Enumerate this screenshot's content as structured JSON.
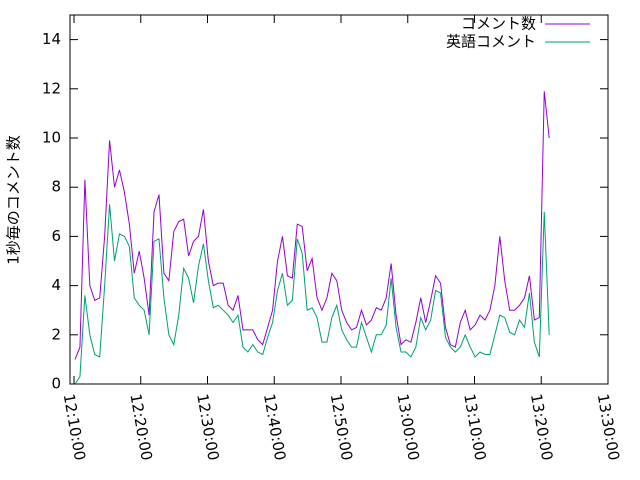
{
  "chart_data": {
    "type": "line",
    "ylabel": "1秒毎のコメント数",
    "x": [
      730.15,
      730.89,
      731.63,
      732.37,
      733.11,
      733.85,
      734.59,
      735.33,
      736.07,
      736.81,
      737.55,
      738.29,
      739.03,
      739.77,
      740.51,
      741.25,
      741.99,
      742.73,
      743.47,
      744.21,
      744.95,
      745.69,
      746.43,
      747.17,
      747.91,
      748.65,
      749.39,
      750.13,
      750.87,
      751.61,
      752.35,
      753.09,
      753.83,
      754.57,
      755.31,
      756.05,
      756.79,
      757.53,
      758.27,
      759.01,
      759.75,
      760.49,
      761.23,
      761.97,
      762.71,
      763.45,
      764.19,
      764.93,
      765.67,
      766.41,
      767.15,
      767.89,
      768.63,
      769.37,
      770.11,
      770.85,
      771.59,
      772.33,
      773.07,
      773.81,
      774.55,
      775.29,
      776.03,
      776.77,
      777.51,
      778.25,
      778.99,
      779.73,
      780.47,
      781.21,
      781.95,
      782.69,
      783.43,
      784.17,
      784.91,
      785.65,
      786.39,
      787.13,
      787.87,
      788.61,
      789.35,
      790.09,
      790.83,
      791.57,
      792.31,
      793.05,
      793.79,
      794.53,
      795.27,
      796.01,
      796.75,
      797.49,
      798.23,
      798.97,
      799.71,
      800.45,
      801.19
    ],
    "series": [
      {
        "name": "コメント数",
        "color": "#9400d3",
        "values": [
          1,
          1.5,
          8.3,
          4,
          3.4,
          3.5,
          6,
          9.9,
          8,
          8.7,
          7.8,
          6.5,
          4.5,
          5.4,
          4.3,
          2.8,
          7,
          7.7,
          4.5,
          4.2,
          6.2,
          6.6,
          6.7,
          5.2,
          5.8,
          6,
          7.1,
          5,
          4,
          4.1,
          4.1,
          3.2,
          3,
          3.6,
          2.2,
          2.2,
          2.2,
          1.8,
          1.6,
          2.3,
          3,
          5,
          6,
          4.4,
          4.3,
          6.5,
          6.4,
          4.6,
          5.1,
          3.5,
          3,
          3.5,
          4.5,
          4.2,
          3,
          2.5,
          2.2,
          2.3,
          3,
          2.4,
          2.6,
          3.1,
          3,
          3.5,
          4.9,
          2.8,
          1.6,
          1.8,
          1.7,
          2.5,
          3.5,
          2.5,
          3.4,
          4.4,
          4.1,
          2.3,
          1.6,
          1.5,
          2.5,
          3,
          2.2,
          2.4,
          2.8,
          2.6,
          3,
          4,
          6,
          4.2,
          3,
          3,
          3.2,
          3.5,
          4.4,
          2.6,
          2.7,
          11.9,
          10
        ]
      },
      {
        "name": "英語コメント",
        "color": "#009e73",
        "values": [
          0,
          0.3,
          3.6,
          2,
          1.2,
          1.1,
          4,
          7.3,
          5,
          6.1,
          6,
          5.6,
          3.5,
          3.2,
          3,
          2,
          5.8,
          5.9,
          3.5,
          2,
          1.6,
          2.8,
          4.7,
          4.3,
          3.3,
          4.8,
          5.7,
          4.2,
          3.1,
          3.2,
          3,
          2.8,
          2.5,
          2.8,
          1.5,
          1.3,
          1.6,
          1.3,
          1.2,
          1.9,
          2.5,
          3.8,
          4.5,
          3.2,
          3.4,
          5.9,
          5.3,
          3,
          3.1,
          2.7,
          1.7,
          1.7,
          2.7,
          3.2,
          2.2,
          1.8,
          1.5,
          1.5,
          2.5,
          1.9,
          1.3,
          2,
          2,
          2.4,
          4.3,
          2.3,
          1.3,
          1.3,
          1.1,
          1.5,
          2.7,
          2.2,
          2.6,
          3.8,
          3.7,
          1.9,
          1.5,
          1.3,
          1.5,
          2,
          1.5,
          1.1,
          1.3,
          1.2,
          1.2,
          2,
          2.8,
          2.7,
          2.1,
          2,
          2.6,
          2.3,
          3.7,
          1.7,
          1.1,
          7,
          2
        ]
      }
    ],
    "xlim": [
      729.4,
      810
    ],
    "xticks": [
      {
        "value": 730,
        "label": "12:10:00"
      },
      {
        "value": 740,
        "label": "12:20:00"
      },
      {
        "value": 750,
        "label": "12:30:00"
      },
      {
        "value": 760,
        "label": "12:40:00"
      },
      {
        "value": 770,
        "label": "12:50:00"
      },
      {
        "value": 780,
        "label": "13:00:00"
      },
      {
        "value": 790,
        "label": "13:10:00"
      },
      {
        "value": 800,
        "label": "13:20:00"
      },
      {
        "value": 810,
        "label": "13:30:00"
      }
    ],
    "ylim": [
      0,
      15
    ],
    "yticks": [
      0,
      2,
      4,
      6,
      8,
      10,
      12,
      14
    ],
    "legend": "top-right"
  }
}
